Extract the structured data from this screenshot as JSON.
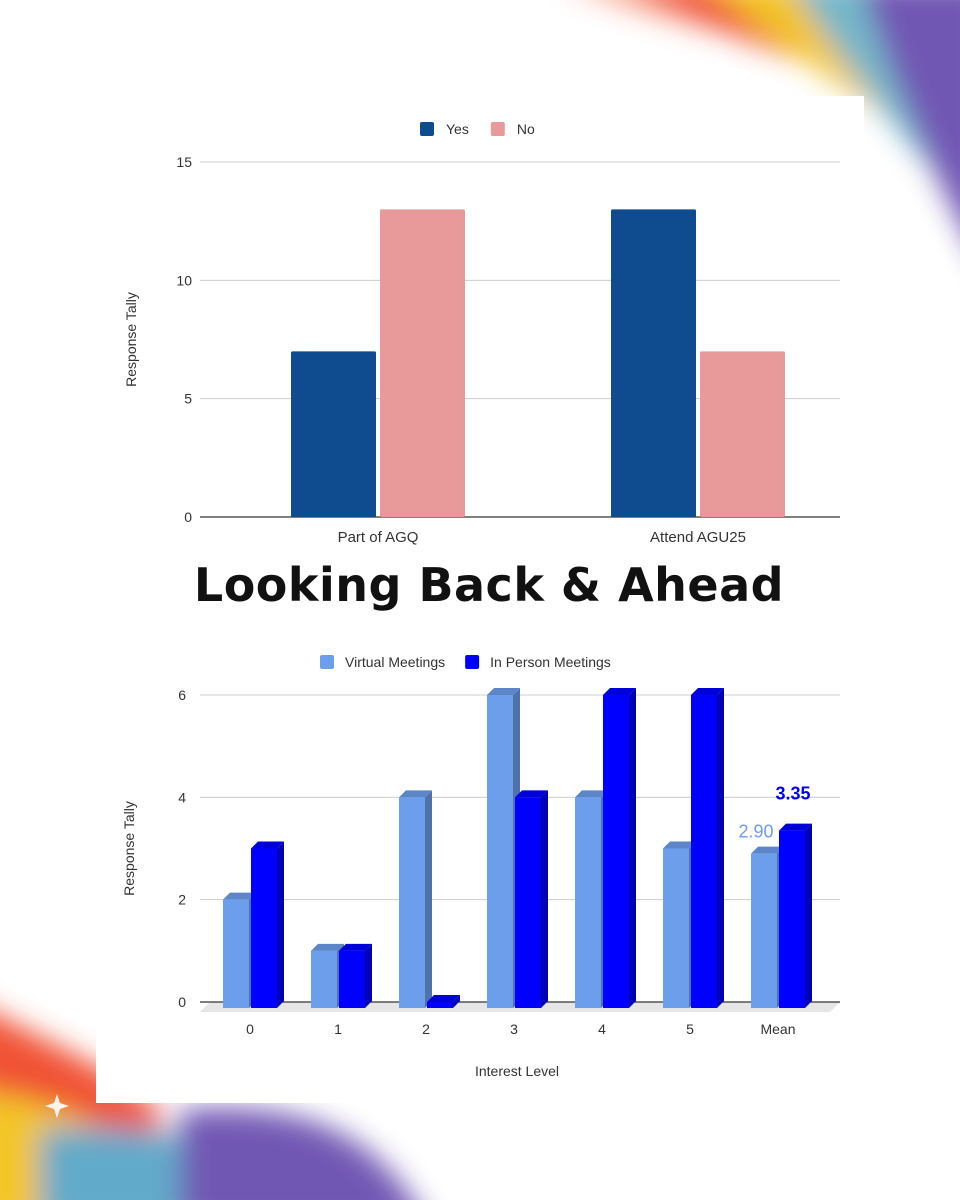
{
  "headline": "Looking Back & Ahead",
  "chart_data": [
    {
      "type": "bar",
      "title": "",
      "categories": [
        "Part of AGQ",
        "Attend AGU25"
      ],
      "series": [
        {
          "name": "Yes",
          "color": "#0e4c8f",
          "values": [
            7,
            13
          ]
        },
        {
          "name": "No",
          "color": "#e89a9a",
          "values": [
            13,
            7
          ]
        }
      ],
      "xlabel": "",
      "ylabel": "Response Tally",
      "ylim": [
        0,
        15
      ],
      "yticks": [
        0,
        5,
        10,
        15
      ],
      "legend": "top",
      "grid": true
    },
    {
      "type": "bar",
      "title": "",
      "categories": [
        "0",
        "1",
        "2",
        "3",
        "4",
        "5",
        "Mean"
      ],
      "series": [
        {
          "name": "Virtual Meetings",
          "color": "#6d9eeb",
          "values": [
            2,
            1,
            4,
            6,
            4,
            3,
            2.9
          ]
        },
        {
          "name": "In Person Meetings",
          "color": "#0000ff",
          "values": [
            3,
            1,
            0,
            4,
            6,
            6,
            3.35
          ]
        }
      ],
      "data_labels": [
        {
          "category": "Mean",
          "series": "Virtual Meetings",
          "text": "2.90"
        },
        {
          "category": "Mean",
          "series": "In Person Meetings",
          "text": "3.35"
        }
      ],
      "xlabel": "Interest Level",
      "ylabel": "Response Tally",
      "ylim": [
        0,
        6
      ],
      "yticks": [
        0,
        2,
        4,
        6
      ],
      "legend": "top",
      "grid": true,
      "style": "3d"
    }
  ]
}
